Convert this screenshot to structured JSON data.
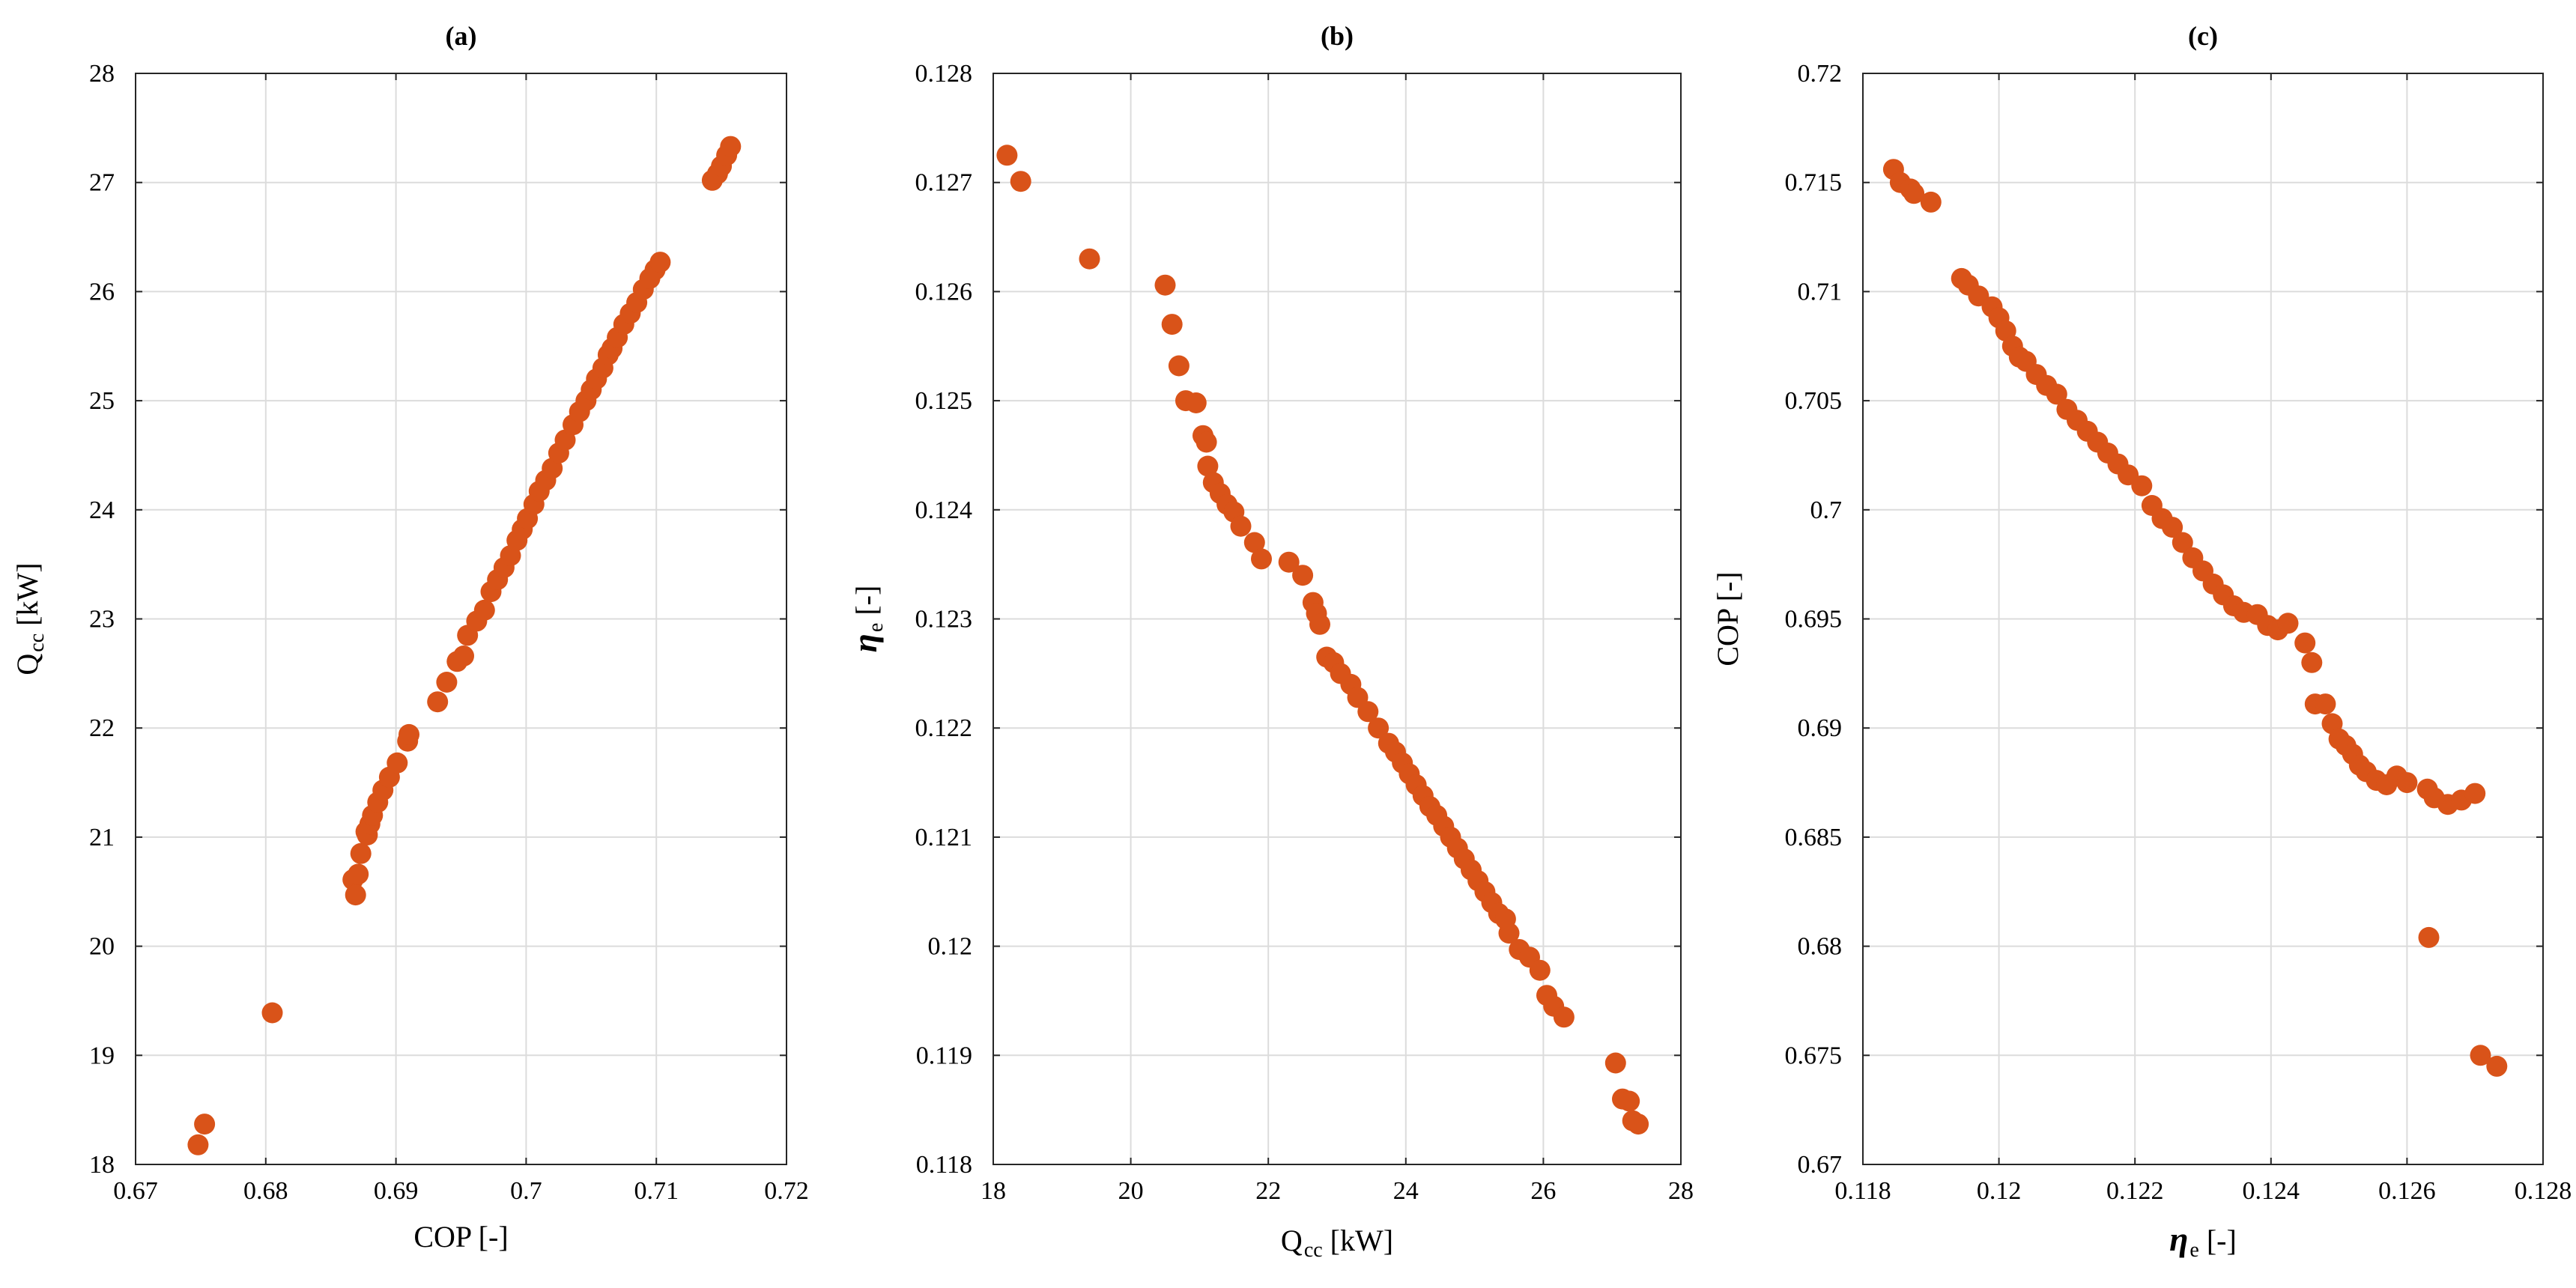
{
  "chart_data": [
    {
      "type": "scatter",
      "title": "(a)",
      "xlabel": "COP [-]",
      "ylabel": {
        "main": "Q",
        "sub": "cc",
        "unit": " [kW]"
      },
      "xlim": [
        0.67,
        0.72
      ],
      "ylim": [
        18,
        28
      ],
      "xticks": [
        "0.67",
        "0.68",
        "0.69",
        "0.7",
        "0.71",
        "0.72"
      ],
      "yticks": [
        "18",
        "19",
        "20",
        "21",
        "22",
        "23",
        "24",
        "25",
        "26",
        "27",
        "28"
      ],
      "grid": true,
      "color": "#d95319",
      "series": [
        {
          "points": [
            [
              0.6748,
              18.18
            ],
            [
              0.6753,
              18.37
            ],
            [
              0.6805,
              19.39
            ],
            [
              0.6867,
              20.61
            ],
            [
              0.6869,
              20.47
            ],
            [
              0.6871,
              20.66
            ],
            [
              0.6873,
              20.85
            ],
            [
              0.6877,
              21.05
            ],
            [
              0.6878,
              21.02
            ],
            [
              0.688,
              21.12
            ],
            [
              0.6882,
              21.2
            ],
            [
              0.6886,
              21.32
            ],
            [
              0.689,
              21.43
            ],
            [
              0.6895,
              21.55
            ],
            [
              0.6901,
              21.68
            ],
            [
              0.6909,
              21.88
            ],
            [
              0.691,
              21.94
            ],
            [
              0.6932,
              22.24
            ],
            [
              0.6939,
              22.42
            ],
            [
              0.6947,
              22.61
            ],
            [
              0.6952,
              22.66
            ],
            [
              0.6955,
              22.85
            ],
            [
              0.6962,
              22.98
            ],
            [
              0.6968,
              23.08
            ],
            [
              0.6973,
              23.25
            ],
            [
              0.6978,
              23.36
            ],
            [
              0.6983,
              23.47
            ],
            [
              0.6988,
              23.58
            ],
            [
              0.6993,
              23.72
            ],
            [
              0.6997,
              23.82
            ],
            [
              0.7001,
              23.92
            ],
            [
              0.7006,
              24.05
            ],
            [
              0.701,
              24.17
            ],
            [
              0.7015,
              24.27
            ],
            [
              0.702,
              24.38
            ],
            [
              0.7025,
              24.52
            ],
            [
              0.703,
              24.64
            ],
            [
              0.7036,
              24.78
            ],
            [
              0.7041,
              24.9
            ],
            [
              0.7046,
              25.0
            ],
            [
              0.705,
              25.1
            ],
            [
              0.7054,
              25.2
            ],
            [
              0.7059,
              25.3
            ],
            [
              0.7063,
              25.42
            ],
            [
              0.7066,
              25.48
            ],
            [
              0.707,
              25.58
            ],
            [
              0.7075,
              25.7
            ],
            [
              0.708,
              25.8
            ],
            [
              0.7085,
              25.9
            ],
            [
              0.709,
              26.02
            ],
            [
              0.7095,
              26.12
            ],
            [
              0.7099,
              26.2
            ],
            [
              0.7103,
              26.27
            ],
            [
              0.7143,
              27.02
            ],
            [
              0.7147,
              27.08
            ],
            [
              0.715,
              27.15
            ],
            [
              0.7154,
              27.25
            ],
            [
              0.7157,
              27.33
            ]
          ]
        }
      ]
    },
    {
      "type": "scatter",
      "title": "(b)",
      "xlabel": {
        "main": "Q",
        "sub": "cc",
        "unit": " [kW]"
      },
      "ylabel": {
        "main": "η",
        "sub": "e",
        "unit": " [-]"
      },
      "xlim": [
        18,
        28
      ],
      "ylim": [
        0.118,
        0.128
      ],
      "xticks": [
        "18",
        "20",
        "22",
        "24",
        "26",
        "28"
      ],
      "yticks": [
        "0.118",
        "0.119",
        "0.12",
        "0.121",
        "0.122",
        "0.123",
        "0.124",
        "0.125",
        "0.126",
        "0.127",
        "0.128"
      ],
      "grid": true,
      "color": "#d95319",
      "series": [
        {
          "points": [
            [
              18.2,
              0.12725
            ],
            [
              18.4,
              0.12701
            ],
            [
              19.4,
              0.1263
            ],
            [
              20.5,
              0.12606
            ],
            [
              20.6,
              0.1257
            ],
            [
              20.7,
              0.12532
            ],
            [
              20.8,
              0.125
            ],
            [
              20.95,
              0.12498
            ],
            [
              21.05,
              0.12468
            ],
            [
              21.1,
              0.12462
            ],
            [
              21.12,
              0.1244
            ],
            [
              21.2,
              0.12425
            ],
            [
              21.3,
              0.12415
            ],
            [
              21.4,
              0.12405
            ],
            [
              21.5,
              0.12398
            ],
            [
              21.6,
              0.12385
            ],
            [
              21.8,
              0.1237
            ],
            [
              21.9,
              0.12355
            ],
            [
              22.3,
              0.12352
            ],
            [
              22.5,
              0.1234
            ],
            [
              22.65,
              0.12315
            ],
            [
              22.7,
              0.12305
            ],
            [
              22.75,
              0.12295
            ],
            [
              22.85,
              0.12265
            ],
            [
              22.95,
              0.1226
            ],
            [
              23.05,
              0.1225
            ],
            [
              23.2,
              0.1224
            ],
            [
              23.3,
              0.12228
            ],
            [
              23.45,
              0.12215
            ],
            [
              23.6,
              0.122
            ],
            [
              23.75,
              0.12186
            ],
            [
              23.85,
              0.12178
            ],
            [
              23.95,
              0.12168
            ],
            [
              24.05,
              0.12158
            ],
            [
              24.15,
              0.12148
            ],
            [
              24.25,
              0.12138
            ],
            [
              24.35,
              0.12128
            ],
            [
              24.45,
              0.1212
            ],
            [
              24.55,
              0.1211
            ],
            [
              24.65,
              0.121
            ],
            [
              24.75,
              0.1209
            ],
            [
              24.85,
              0.1208
            ],
            [
              24.95,
              0.1207
            ],
            [
              25.05,
              0.1206
            ],
            [
              25.15,
              0.1205
            ],
            [
              25.25,
              0.1204
            ],
            [
              25.35,
              0.1203
            ],
            [
              25.45,
              0.12025
            ],
            [
              25.5,
              0.12012
            ],
            [
              25.65,
              0.11997
            ],
            [
              25.8,
              0.1199
            ],
            [
              25.95,
              0.11978
            ],
            [
              26.05,
              0.11955
            ],
            [
              26.15,
              0.11945
            ],
            [
              26.3,
              0.11935
            ],
            [
              27.05,
              0.11893
            ],
            [
              27.15,
              0.1186
            ],
            [
              27.25,
              0.11858
            ],
            [
              27.3,
              0.1184
            ],
            [
              27.38,
              0.11837
            ]
          ]
        }
      ]
    },
    {
      "type": "scatter",
      "title": "(c)",
      "xlabel": {
        "main": "η",
        "sub": "e",
        "unit": " [-]"
      },
      "ylabel": "COP [-]",
      "xlim": [
        0.118,
        0.128
      ],
      "ylim": [
        0.67,
        0.72
      ],
      "xticks": [
        "0.118",
        "0.12",
        "0.122",
        "0.124",
        "0.126",
        "0.128"
      ],
      "yticks": [
        "0.67",
        "0.675",
        "0.68",
        "0.685",
        "0.69",
        "0.695",
        "0.7",
        "0.705",
        "0.71",
        "0.715",
        "0.72"
      ],
      "grid": true,
      "color": "#d95319",
      "series": [
        {
          "points": [
            [
              0.11845,
              0.7156
            ],
            [
              0.11855,
              0.715
            ],
            [
              0.1187,
              0.7147
            ],
            [
              0.11875,
              0.7145
            ],
            [
              0.119,
              0.7141
            ],
            [
              0.11945,
              0.7106
            ],
            [
              0.11955,
              0.7103
            ],
            [
              0.1197,
              0.7098
            ],
            [
              0.1199,
              0.7093
            ],
            [
              0.12,
              0.7088
            ],
            [
              0.1201,
              0.7082
            ],
            [
              0.1202,
              0.7075
            ],
            [
              0.1203,
              0.707
            ],
            [
              0.1204,
              0.7068
            ],
            [
              0.12055,
              0.7062
            ],
            [
              0.1207,
              0.7057
            ],
            [
              0.12085,
              0.7053
            ],
            [
              0.121,
              0.7046
            ],
            [
              0.12115,
              0.7041
            ],
            [
              0.1213,
              0.7036
            ],
            [
              0.12145,
              0.7031
            ],
            [
              0.1216,
              0.7026
            ],
            [
              0.12175,
              0.7021
            ],
            [
              0.1219,
              0.7016
            ],
            [
              0.1221,
              0.7011
            ],
            [
              0.12225,
              0.7002
            ],
            [
              0.1224,
              0.6996
            ],
            [
              0.12255,
              0.6992
            ],
            [
              0.1227,
              0.6985
            ],
            [
              0.12285,
              0.6978
            ],
            [
              0.123,
              0.6972
            ],
            [
              0.12315,
              0.6966
            ],
            [
              0.1233,
              0.6961
            ],
            [
              0.12345,
              0.6956
            ],
            [
              0.1236,
              0.6953
            ],
            [
              0.1238,
              0.6952
            ],
            [
              0.12395,
              0.6947
            ],
            [
              0.1241,
              0.6945
            ],
            [
              0.12425,
              0.6948
            ],
            [
              0.1245,
              0.6939
            ],
            [
              0.1246,
              0.693
            ],
            [
              0.12465,
              0.6911
            ],
            [
              0.1248,
              0.6911
            ],
            [
              0.1249,
              0.6902
            ],
            [
              0.125,
              0.6895
            ],
            [
              0.1251,
              0.6892
            ],
            [
              0.1252,
              0.6888
            ],
            [
              0.1253,
              0.6883
            ],
            [
              0.1254,
              0.688
            ],
            [
              0.12555,
              0.6876
            ],
            [
              0.1257,
              0.6874
            ],
            [
              0.12585,
              0.6878
            ],
            [
              0.126,
              0.6875
            ],
            [
              0.1263,
              0.6872
            ],
            [
              0.1264,
              0.6868
            ],
            [
              0.1266,
              0.6865
            ],
            [
              0.1268,
              0.6867
            ],
            [
              0.127,
              0.687
            ],
            [
              0.12632,
              0.6804
            ],
            [
              0.12708,
              0.675
            ],
            [
              0.12732,
              0.6745
            ]
          ]
        }
      ]
    }
  ]
}
